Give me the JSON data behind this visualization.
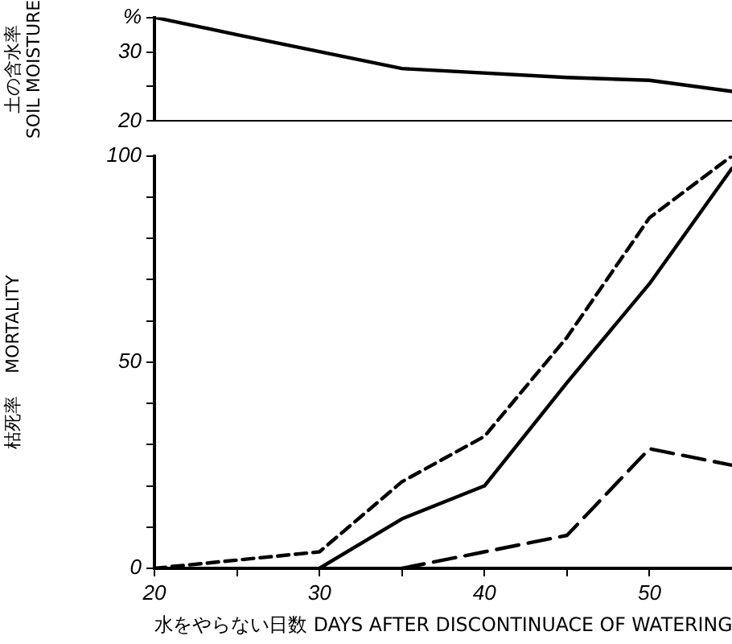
{
  "chart_data": [
    {
      "type": "line",
      "ylabel": "土の含水率\nSOIL MOISTURE",
      "x": [
        20,
        25,
        35,
        45,
        50,
        55
      ],
      "xlim": [
        20,
        55
      ],
      "ylim": [
        20,
        35
      ],
      "yticks": [
        20,
        {
          "value": 25,
          "label": null
        },
        30,
        {
          "value": 35,
          "label": "%"
        }
      ],
      "tick_labels": "y",
      "grid": false,
      "legend": false,
      "marker": "none",
      "series": [
        {
          "color": "#000000",
          "line_style": "solid",
          "values": [
            35,
            32.5,
            27.6,
            26.3,
            25.9,
            24.3
          ]
        }
      ]
    },
    {
      "type": "line",
      "ylabel": "枯死率    MORTALITY",
      "xlabel": "水をやらない日数 DAYS AFTER DISCONTINUACE OF WATERING",
      "x": [
        20,
        30,
        35,
        40,
        45,
        50,
        55
      ],
      "xlim": [
        20,
        55
      ],
      "xticks": [
        20,
        {
          "value": 25,
          "label": null
        },
        30,
        {
          "value": 35,
          "label": null
        },
        40,
        {
          "value": 45,
          "label": null
        },
        50
      ],
      "ylim": [
        0,
        100
      ],
      "yticks": [
        0,
        {
          "value": 10,
          "label": null
        },
        {
          "value": 20,
          "label": null
        },
        {
          "value": 30,
          "label": null
        },
        {
          "value": 40,
          "label": null
        },
        50,
        {
          "value": 60,
          "label": null
        },
        {
          "value": 70,
          "label": null
        },
        {
          "value": 80,
          "label": null
        },
        {
          "value": 90,
          "label": null
        },
        100
      ],
      "grid": false,
      "legend": false,
      "marker": "none",
      "series": [
        {
          "color": "#000000",
          "line_style": "dashed",
          "values": [
            0,
            4,
            21,
            32,
            56,
            85,
            100
          ]
        },
        {
          "color": "#000000",
          "line_style": "solid",
          "values": [
            null,
            0,
            12,
            20,
            45,
            69,
            97
          ]
        },
        {
          "color": "#000000",
          "line_style": "longdash",
          "values": [
            null,
            null,
            0,
            4,
            8,
            29,
            25
          ]
        }
      ]
    }
  ]
}
